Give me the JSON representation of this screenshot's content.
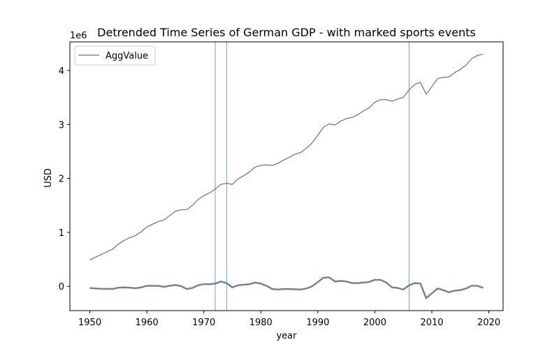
{
  "chart_data": {
    "type": "line",
    "title": "Detrended Time Series of German GDP - with marked sports events",
    "xlabel": "year",
    "ylabel": "USD",
    "y_offset_label": "1e6",
    "xlim": [
      1946.5,
      2022.5
    ],
    "ylim": [
      -450000,
      4530000
    ],
    "x_ticks": [
      1950,
      1960,
      1970,
      1980,
      1990,
      2000,
      2010,
      2020
    ],
    "y_ticks": [
      0,
      1000000,
      2000000,
      3000000,
      4000000
    ],
    "y_tick_labels": [
      "0",
      "1",
      "2",
      "3",
      "4"
    ],
    "grid": false,
    "legend_position": "top-left",
    "colors": {
      "agg": "#707070",
      "detrended": "#6f8096",
      "event": "#5b9bd5"
    },
    "event_years": [
      1972,
      1974,
      2006
    ],
    "x": [
      1950,
      1951,
      1952,
      1953,
      1954,
      1955,
      1956,
      1957,
      1958,
      1959,
      1960,
      1961,
      1962,
      1963,
      1964,
      1965,
      1966,
      1967,
      1968,
      1969,
      1970,
      1971,
      1972,
      1973,
      1974,
      1975,
      1976,
      1977,
      1978,
      1979,
      1980,
      1981,
      1982,
      1983,
      1984,
      1985,
      1986,
      1987,
      1988,
      1989,
      1990,
      1991,
      1992,
      1993,
      1994,
      1995,
      1996,
      1997,
      1998,
      1999,
      2000,
      2001,
      2002,
      2003,
      2004,
      2005,
      2006,
      2007,
      2008,
      2009,
      2010,
      2011,
      2012,
      2013,
      2014,
      2015,
      2016,
      2017,
      2018,
      2019
    ],
    "series": [
      {
        "name": "AggValue",
        "values": [
          490000,
          540000,
          590000,
          640000,
          690000,
          780000,
          850000,
          900000,
          940000,
          1010000,
          1100000,
          1150000,
          1200000,
          1230000,
          1310000,
          1390000,
          1420000,
          1420000,
          1500000,
          1610000,
          1680000,
          1730000,
          1800000,
          1890000,
          1910000,
          1890000,
          1990000,
          2050000,
          2120000,
          2210000,
          2240000,
          2250000,
          2240000,
          2280000,
          2340000,
          2390000,
          2450000,
          2480000,
          2560000,
          2660000,
          2800000,
          2950000,
          3010000,
          2990000,
          3060000,
          3110000,
          3130000,
          3180000,
          3250000,
          3310000,
          3410000,
          3460000,
          3460000,
          3430000,
          3470000,
          3500000,
          3640000,
          3740000,
          3780000,
          3560000,
          3700000,
          3850000,
          3870000,
          3880000,
          3960000,
          4020000,
          4100000,
          4220000,
          4280000,
          4300000
        ]
      },
      {
        "name": "",
        "values": [
          -30000,
          -40000,
          -45000,
          -47000,
          -50000,
          -25000,
          -20000,
          -25000,
          -35000,
          -20000,
          10000,
          10000,
          10000,
          -10000,
          10000,
          25000,
          5000,
          -50000,
          -30000,
          20000,
          40000,
          40000,
          50000,
          90000,
          60000,
          -20000,
          20000,
          30000,
          40000,
          70000,
          50000,
          10000,
          -50000,
          -60000,
          -50000,
          -50000,
          -55000,
          -60000,
          -40000,
          0,
          80000,
          160000,
          165000,
          90000,
          100000,
          90000,
          60000,
          60000,
          70000,
          80000,
          120000,
          120000,
          70000,
          -20000,
          -30000,
          -60000,
          20000,
          60000,
          50000,
          -220000,
          -130000,
          -40000,
          -70000,
          -110000,
          -80000,
          -70000,
          -40000,
          10000,
          10000,
          -30000
        ]
      }
    ]
  }
}
